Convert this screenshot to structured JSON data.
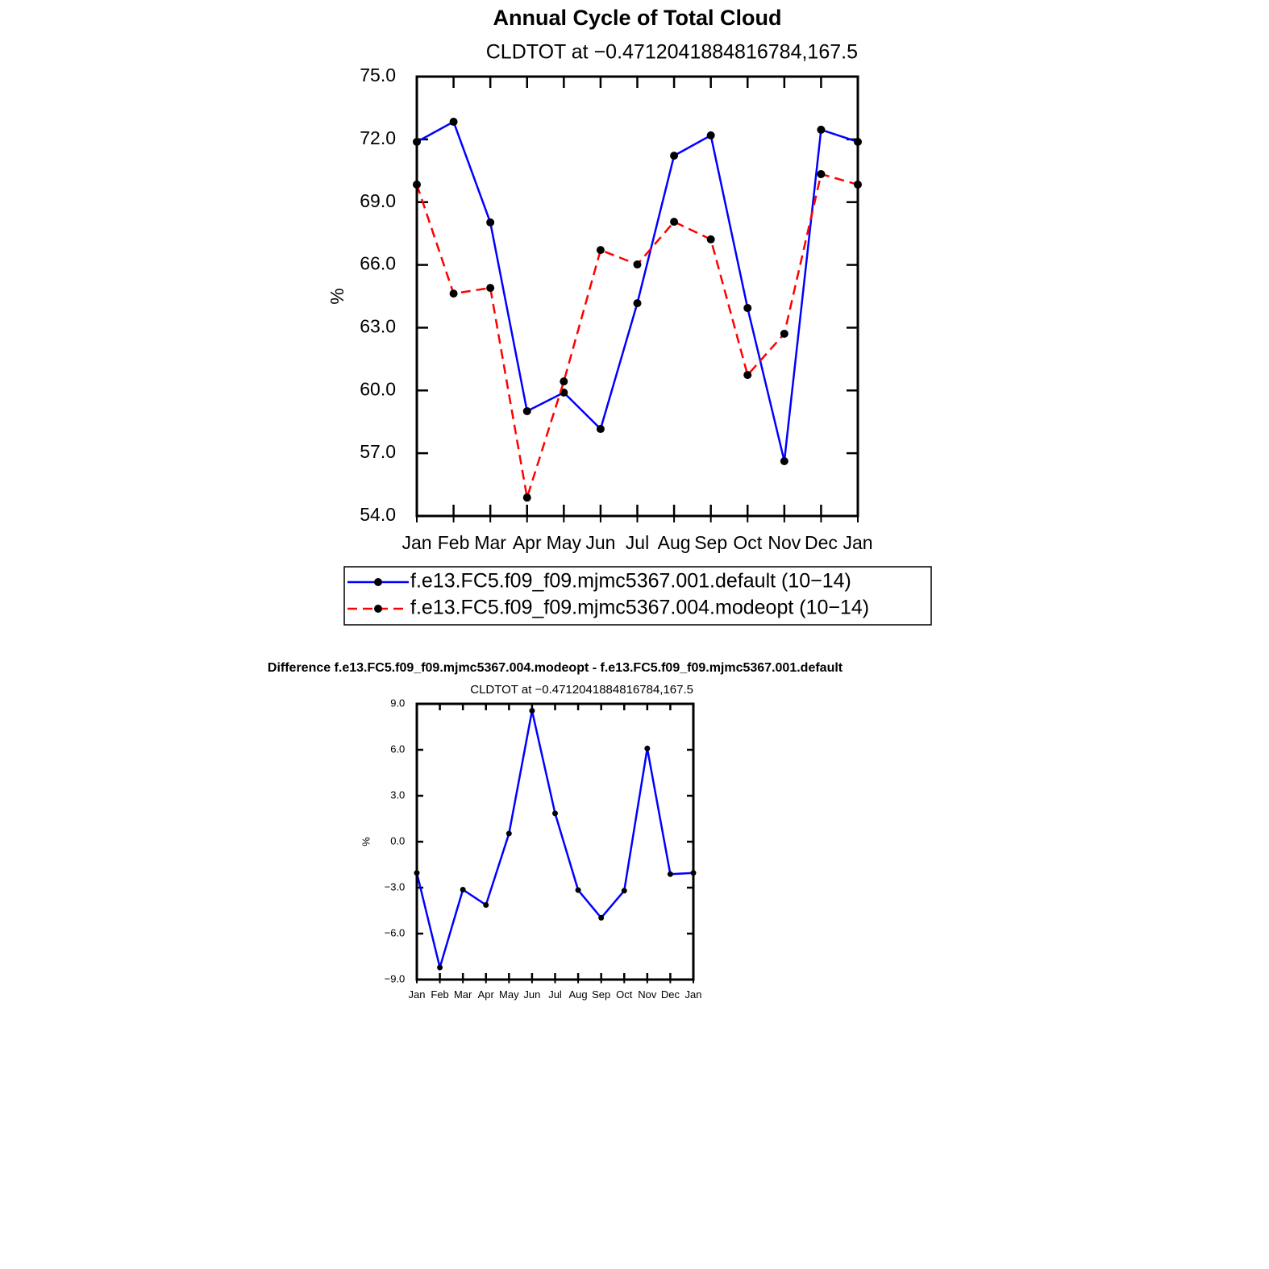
{
  "chart_data": [
    {
      "type": "line",
      "title": "Annual Cycle of Total Cloud",
      "subtitle": "CLDTOT at −0.4712041884816784,167.5",
      "y_label": "%",
      "categories": [
        "Jan",
        "Feb",
        "Mar",
        "Apr",
        "May",
        "Jun",
        "Jul",
        "Aug",
        "Sep",
        "Oct",
        "Nov",
        "Dec",
        "Jan"
      ],
      "series": [
        {
          "name": "f.e13.FC5.f09_f09.mjmc5367.001.default (10−14)",
          "color": "#0000ff",
          "line_style": "solid",
          "values": [
            71.88,
            72.84,
            68.03,
            59.01,
            59.9,
            58.16,
            64.17,
            71.22,
            72.19,
            63.94,
            56.62,
            72.46,
            71.88
          ]
        },
        {
          "name": "f.e13.FC5.f09_f09.mjmc5367.004.modeopt (10−14)",
          "color": "#ff0000",
          "line_style": "dashed",
          "values": [
            69.84,
            64.63,
            64.9,
            54.88,
            60.43,
            66.71,
            66.02,
            68.06,
            67.22,
            60.74,
            62.71,
            70.34,
            69.84
          ]
        }
      ],
      "marker_color": "#000000",
      "ylim": [
        54,
        75
      ],
      "yticks": [
        {
          "value": 54,
          "label": "54.0"
        },
        {
          "value": 57,
          "label": "57.0"
        },
        {
          "value": 60,
          "label": "60.0"
        },
        {
          "value": 63,
          "label": "63.0"
        },
        {
          "value": 66,
          "label": "66.0"
        },
        {
          "value": 69,
          "label": "69.0"
        },
        {
          "value": 72,
          "label": "72.0"
        },
        {
          "value": 75,
          "label": "75.0"
        }
      ],
      "legend": "below"
    },
    {
      "type": "line",
      "title": "Difference f.e13.FC5.f09_f09.mjmc5367.004.modeopt - f.e13.FC5.f09_f09.mjmc5367.001.default",
      "subtitle": "CLDTOT at −0.4712041884816784,167.5",
      "y_label": "%",
      "categories": [
        "Jan",
        "Feb",
        "Mar",
        "Apr",
        "May",
        "Jun",
        "Jul",
        "Aug",
        "Sep",
        "Oct",
        "Nov",
        "Dec",
        "Jan"
      ],
      "values": [
        -2.04,
        -8.21,
        -3.13,
        -4.13,
        0.53,
        8.55,
        1.85,
        -3.16,
        -4.97,
        -3.2,
        6.09,
        -2.12,
        -2.04
      ],
      "color": "#0000ff",
      "marker_color": "#000000",
      "ylim": [
        -9,
        9
      ],
      "yticks": [
        {
          "value": -9,
          "label": "−9.0"
        },
        {
          "value": -6,
          "label": "−6.0"
        },
        {
          "value": -3,
          "label": "−3.0"
        },
        {
          "value": 0,
          "label": "0.0"
        },
        {
          "value": 3,
          "label": "3.0"
        },
        {
          "value": 6,
          "label": "6.0"
        },
        {
          "value": 9,
          "label": "9.0"
        }
      ]
    }
  ]
}
